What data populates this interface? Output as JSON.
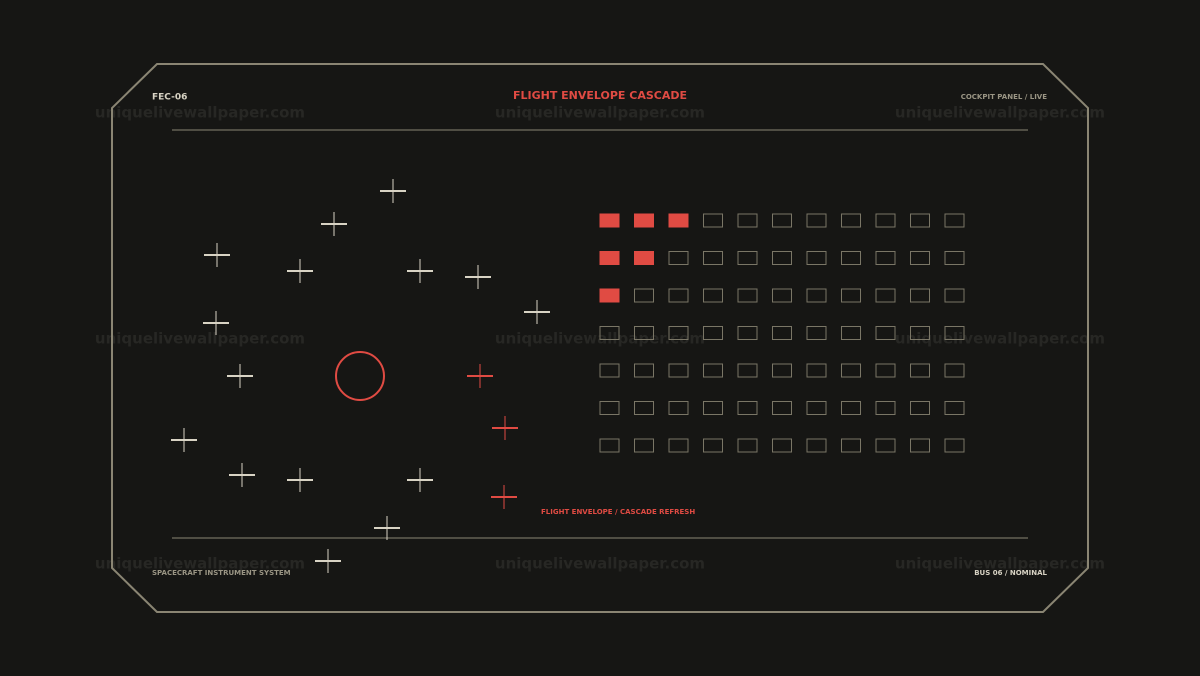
{
  "header": {
    "code": "FEC-06",
    "title": "FLIGHT ENVELOPE CASCADE",
    "status": "COCKPIT PANEL / LIVE"
  },
  "footer": {
    "system": "SPACECRAFT INSTRUMENT SYSTEM",
    "bus": "BUS 06 / NOMINAL"
  },
  "caption": "FLIGHT ENVELOPE / CASCADE REFRESH",
  "watermark": "uniquelivewallpaper.com",
  "cascade": {
    "columns": 11,
    "filled_per_row": [
      3,
      2,
      1,
      0,
      0,
      0,
      0
    ]
  }
}
